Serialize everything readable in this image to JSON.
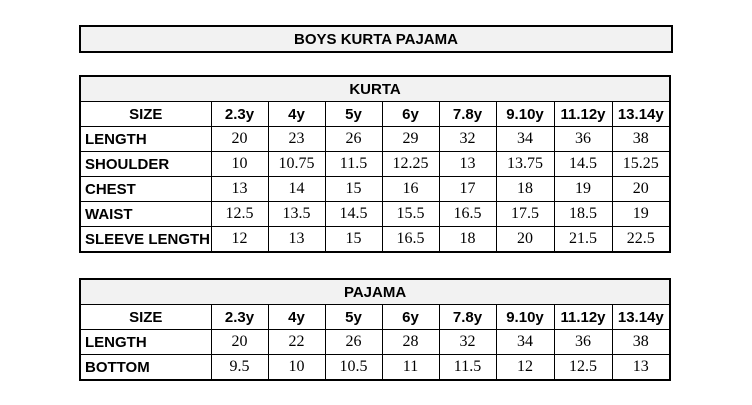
{
  "title": "BOYS KURTA PAJAMA",
  "size_label": "SIZE",
  "sizes": [
    "2.3y",
    "4y",
    "5y",
    "6y",
    "7.8y",
    "9.10y",
    "11.12y",
    "13.14y"
  ],
  "kurta": {
    "heading": "KURTA",
    "rows": [
      {
        "label": "LENGTH",
        "values": [
          "20",
          "23",
          "26",
          "29",
          "32",
          "34",
          "36",
          "38"
        ]
      },
      {
        "label": "SHOULDER",
        "values": [
          "10",
          "10.75",
          "11.5",
          "12.25",
          "13",
          "13.75",
          "14.5",
          "15.25"
        ]
      },
      {
        "label": "CHEST",
        "values": [
          "13",
          "14",
          "15",
          "16",
          "17",
          "18",
          "19",
          "20"
        ]
      },
      {
        "label": "WAIST",
        "values": [
          "12.5",
          "13.5",
          "14.5",
          "15.5",
          "16.5",
          "17.5",
          "18.5",
          "19"
        ]
      },
      {
        "label": "SLEEVE LENGTH",
        "values": [
          "12",
          "13",
          "15",
          "16.5",
          "18",
          "20",
          "21.5",
          "22.5"
        ]
      }
    ]
  },
  "pajama": {
    "heading": "PAJAMA",
    "rows": [
      {
        "label": "LENGTH",
        "values": [
          "20",
          "22",
          "26",
          "28",
          "32",
          "34",
          "36",
          "38"
        ]
      },
      {
        "label": "BOTTOM",
        "values": [
          "9.5",
          "10",
          "10.5",
          "11",
          "11.5",
          "12",
          "12.5",
          "13"
        ]
      }
    ]
  }
}
